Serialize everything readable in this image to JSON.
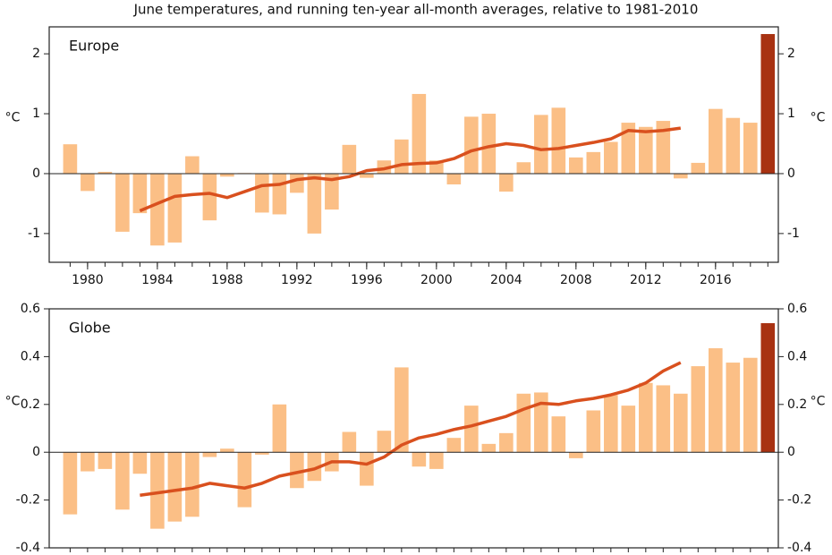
{
  "title": "June temperatures, and running ten-year all-month averages, relative to 1981-2010",
  "chart_data": [
    {
      "type": "bar",
      "title": "Europe",
      "y_label": "°C",
      "x": [
        1979,
        1980,
        1981,
        1982,
        1983,
        1984,
        1985,
        1986,
        1987,
        1988,
        1989,
        1990,
        1991,
        1992,
        1993,
        1994,
        1995,
        1996,
        1997,
        1998,
        1999,
        2000,
        2001,
        2002,
        2003,
        2004,
        2005,
        2006,
        2007,
        2008,
        2009,
        2010,
        2011,
        2012,
        2013,
        2014,
        2015,
        2016,
        2017,
        2018,
        2019
      ],
      "values": [
        0.49,
        -0.29,
        0.03,
        -0.97,
        -0.66,
        -1.2,
        -1.15,
        0.29,
        -0.78,
        -0.05,
        0.01,
        -0.65,
        -0.68,
        -0.32,
        -1.0,
        -0.6,
        0.48,
        -0.07,
        0.22,
        0.57,
        1.33,
        0.22,
        -0.18,
        0.95,
        1.0,
        -0.3,
        0.19,
        0.98,
        1.1,
        0.27,
        0.36,
        0.53,
        0.85,
        0.78,
        0.88,
        -0.08,
        0.18,
        1.08,
        0.93,
        0.85,
        2.33
      ],
      "bar_colors": [
        "#fbbf86",
        "#fbbf86",
        "#fbbf86",
        "#fbbf86",
        "#fbbf86",
        "#fbbf86",
        "#fbbf86",
        "#fbbf86",
        "#fbbf86",
        "#fbbf86",
        "#fbbf86",
        "#fbbf86",
        "#fbbf86",
        "#fbbf86",
        "#fbbf86",
        "#fbbf86",
        "#fbbf86",
        "#fbbf86",
        "#fbbf86",
        "#fbbf86",
        "#fbbf86",
        "#fbbf86",
        "#fbbf86",
        "#fbbf86",
        "#fbbf86",
        "#fbbf86",
        "#fbbf86",
        "#fbbf86",
        "#fbbf86",
        "#fbbf86",
        "#fbbf86",
        "#fbbf86",
        "#fbbf86",
        "#fbbf86",
        "#fbbf86",
        "#fbbf86",
        "#fbbf86",
        "#fbbf86",
        "#fbbf86",
        "#fbbf86",
        "#a83212"
      ],
      "line": {
        "color": "#d9501e",
        "values": [
          null,
          null,
          null,
          null,
          -0.62,
          -0.5,
          -0.38,
          -0.35,
          -0.33,
          -0.4,
          -0.3,
          -0.2,
          -0.18,
          -0.1,
          -0.07,
          -0.1,
          -0.05,
          0.05,
          0.08,
          0.15,
          0.17,
          0.18,
          0.25,
          0.38,
          0.45,
          0.5,
          0.47,
          0.4,
          0.42,
          0.47,
          0.52,
          0.58,
          0.72,
          0.7,
          0.72,
          0.76,
          null,
          null,
          null,
          null,
          null
        ]
      },
      "xlim": [
        1977.8,
        2019.6
      ],
      "xticks": [
        1980,
        1984,
        1988,
        1992,
        1996,
        2000,
        2004,
        2008,
        2012,
        2016
      ],
      "ylim": [
        -1.48,
        2.45
      ],
      "yticks": [
        -1,
        0,
        1,
        2
      ]
    },
    {
      "type": "bar",
      "title": "Globe",
      "y_label": "°C",
      "x": [
        1979,
        1980,
        1981,
        1982,
        1983,
        1984,
        1985,
        1986,
        1987,
        1988,
        1989,
        1990,
        1991,
        1992,
        1993,
        1994,
        1995,
        1996,
        1997,
        1998,
        1999,
        2000,
        2001,
        2002,
        2003,
        2004,
        2005,
        2006,
        2007,
        2008,
        2009,
        2010,
        2011,
        2012,
        2013,
        2014,
        2015,
        2016,
        2017,
        2018,
        2019
      ],
      "values": [
        -0.26,
        -0.08,
        -0.07,
        -0.24,
        -0.09,
        -0.32,
        -0.29,
        -0.27,
        -0.02,
        0.015,
        -0.23,
        -0.01,
        0.2,
        -0.15,
        -0.12,
        -0.08,
        0.085,
        -0.14,
        0.09,
        0.355,
        -0.06,
        -0.07,
        0.06,
        0.195,
        0.035,
        0.08,
        0.245,
        0.25,
        0.15,
        -0.025,
        0.175,
        0.24,
        0.195,
        0.29,
        0.28,
        0.245,
        0.36,
        0.435,
        0.375,
        0.395,
        0.54
      ],
      "bar_colors": [
        "#fbbf86",
        "#fbbf86",
        "#fbbf86",
        "#fbbf86",
        "#fbbf86",
        "#fbbf86",
        "#fbbf86",
        "#fbbf86",
        "#fbbf86",
        "#fbbf86",
        "#fbbf86",
        "#fbbf86",
        "#fbbf86",
        "#fbbf86",
        "#fbbf86",
        "#fbbf86",
        "#fbbf86",
        "#fbbf86",
        "#fbbf86",
        "#fbbf86",
        "#fbbf86",
        "#fbbf86",
        "#fbbf86",
        "#fbbf86",
        "#fbbf86",
        "#fbbf86",
        "#fbbf86",
        "#fbbf86",
        "#fbbf86",
        "#fbbf86",
        "#fbbf86",
        "#fbbf86",
        "#fbbf86",
        "#fbbf86",
        "#fbbf86",
        "#fbbf86",
        "#fbbf86",
        "#fbbf86",
        "#fbbf86",
        "#fbbf86",
        "#a83212"
      ],
      "line": {
        "color": "#d9501e",
        "values": [
          null,
          null,
          null,
          null,
          -0.18,
          -0.17,
          -0.16,
          -0.15,
          -0.13,
          -0.14,
          -0.15,
          -0.13,
          -0.1,
          -0.085,
          -0.07,
          -0.04,
          -0.04,
          -0.05,
          -0.02,
          0.03,
          0.06,
          0.075,
          0.095,
          0.11,
          0.13,
          0.15,
          0.18,
          0.205,
          0.2,
          0.215,
          0.225,
          0.24,
          0.26,
          0.29,
          0.34,
          0.375,
          null,
          null,
          null,
          null,
          null
        ]
      },
      "xlim": [
        1977.8,
        2019.6
      ],
      "ylim": [
        -0.4,
        0.6
      ],
      "yticks": [
        -0.4,
        -0.2,
        0,
        0.2,
        0.4,
        0.6
      ]
    }
  ]
}
